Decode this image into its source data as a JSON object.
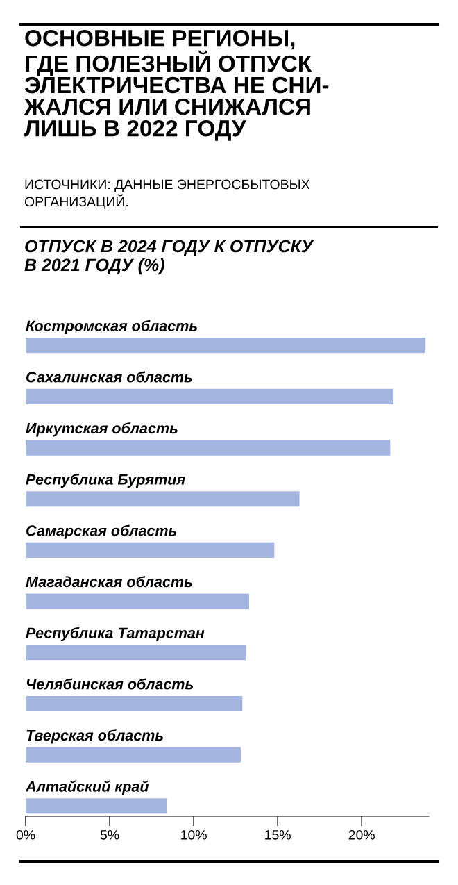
{
  "chart_data": {
    "type": "bar",
    "orientation": "horizontal",
    "title": "ОСНОВНЫЕ РЕГИОНЫ,\nГДЕ ПОЛЕЗНЫЙ ОТПУСК\nЭЛЕКТРИЧЕСТВА НЕ СНИ-\nЖАЛСЯ ИЛИ СНИЖАЛСЯ\nЛИШЬ В 2022 ГОДУ",
    "annotations": [
      "ИСТОЧНИКИ: ДАННЫЕ ЭНЕРГОСБЫТОВЫХ\nОРГАНИЗАЦИЙ."
    ],
    "subtitle": "ОТПУСК В 2024 ГОДУ К ОТПУСКУ\nВ 2021 ГОДУ (%)",
    "categories": [
      "Костромская область",
      "Сахалинская область",
      "Иркутская область",
      "Республика Бурятия",
      "Самарская область",
      "Магаданская область",
      "Республика Татарстан",
      "Челябинская область",
      "Тверская область",
      "Алтайский край"
    ],
    "values": [
      23.8,
      21.9,
      21.7,
      16.3,
      14.8,
      13.3,
      13.1,
      12.9,
      12.8,
      8.4
    ],
    "color": "#a4b6e0",
    "xlim": [
      0,
      24
    ],
    "xticks": [
      {
        "value": 0,
        "label": "0%"
      },
      {
        "value": 5,
        "label": "5%"
      },
      {
        "value": 10,
        "label": "10%"
      },
      {
        "value": 15,
        "label": "15%"
      },
      {
        "value": 20,
        "label": "20%"
      }
    ],
    "grid": false,
    "legend": false
  }
}
